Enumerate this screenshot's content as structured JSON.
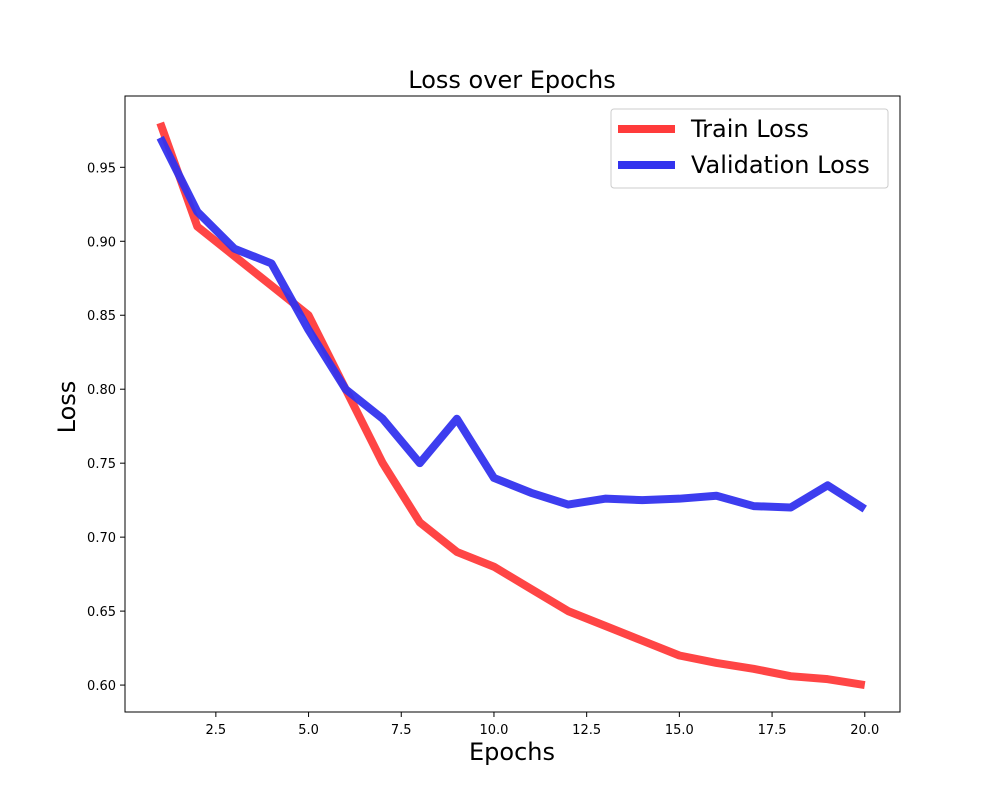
{
  "chart_data": {
    "type": "line",
    "title": "Loss over Epochs",
    "xlabel": "Epochs",
    "ylabel": "Loss",
    "xlim": [
      0.05,
      20.95
    ],
    "ylim": [
      0.5818,
      0.9982
    ],
    "xticks": [
      2.5,
      5.0,
      7.5,
      10.0,
      12.5,
      15.0,
      17.5,
      20.0
    ],
    "xtick_labels": [
      "2.5",
      "5.0",
      "7.5",
      "10.0",
      "12.5",
      "15.0",
      "17.5",
      "20.0"
    ],
    "yticks": [
      0.6,
      0.65,
      0.7,
      0.75,
      0.8,
      0.85,
      0.9,
      0.95
    ],
    "ytick_labels": [
      "0.60",
      "0.65",
      "0.70",
      "0.75",
      "0.80",
      "0.85",
      "0.90",
      "0.95"
    ],
    "grid": false,
    "legend_position": "top-right",
    "x": [
      1,
      2,
      3,
      4,
      5,
      6,
      7,
      8,
      9,
      10,
      11,
      12,
      13,
      14,
      15,
      16,
      17,
      18,
      19,
      20
    ],
    "series": [
      {
        "name": "Train Loss",
        "color": "#ff3b3b",
        "values": [
          0.98,
          0.91,
          0.89,
          0.87,
          0.85,
          0.8,
          0.75,
          0.71,
          0.69,
          0.68,
          0.665,
          0.65,
          0.64,
          0.63,
          0.62,
          0.615,
          0.611,
          0.606,
          0.604,
          0.6
        ]
      },
      {
        "name": "Validation Loss",
        "color": "#3333ee",
        "values": [
          0.97,
          0.92,
          0.895,
          0.885,
          0.84,
          0.8,
          0.78,
          0.75,
          0.78,
          0.74,
          0.73,
          0.722,
          0.726,
          0.725,
          0.726,
          0.728,
          0.721,
          0.72,
          0.735,
          0.719
        ]
      }
    ]
  }
}
